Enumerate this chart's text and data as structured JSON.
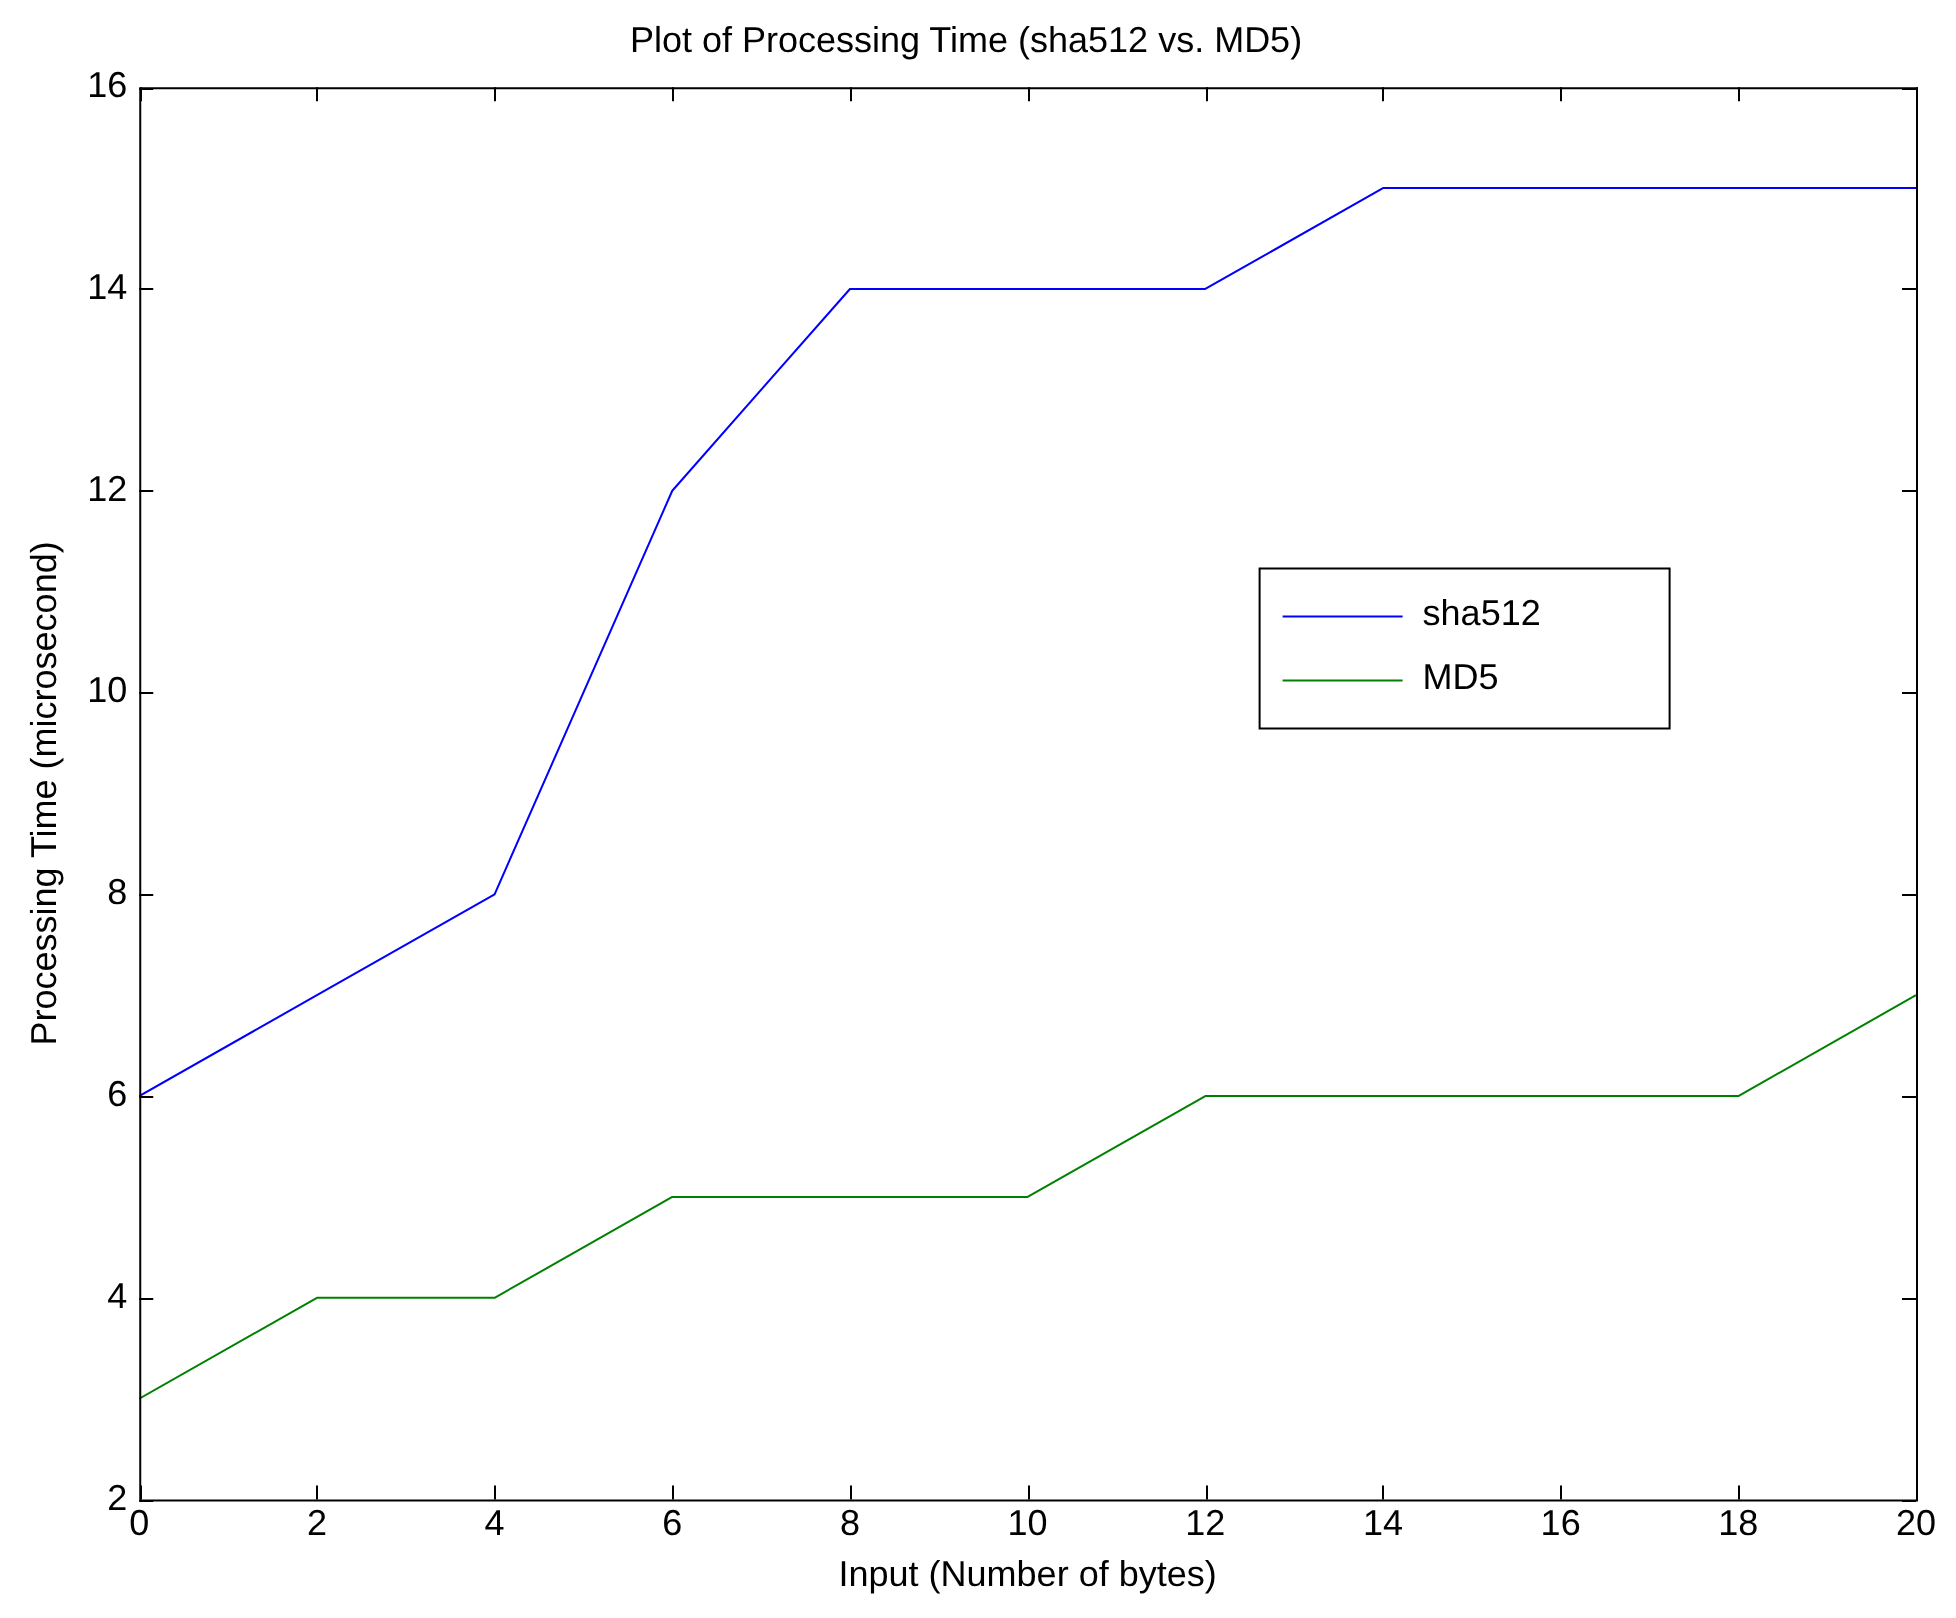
{
  "chart_data": {
    "type": "line",
    "title": "Plot of Processing Time (sha512 vs. MD5)",
    "xlabel": "Input (Number of bytes)",
    "ylabel": "Processing Time (microsecond)",
    "x": [
      0,
      2,
      4,
      6,
      8,
      10,
      12,
      14,
      16,
      18,
      20
    ],
    "series": [
      {
        "name": "sha512",
        "color": "#0000ff",
        "values": [
          6,
          7,
          8,
          12,
          14,
          14,
          14,
          15,
          15,
          15,
          15
        ]
      },
      {
        "name": "MD5",
        "color": "#008000",
        "values": [
          3,
          4,
          4,
          5,
          5,
          5,
          6,
          6,
          6,
          6,
          7
        ]
      }
    ],
    "xlim": [
      0,
      20
    ],
    "xticks": [
      0,
      2,
      4,
      6,
      8,
      10,
      12,
      14,
      16,
      18,
      20
    ],
    "ylim": [
      2,
      16
    ],
    "yticks": [
      2,
      4,
      6,
      8,
      10,
      12,
      14,
      16
    ],
    "grid": false,
    "legend": "right",
    "marker": "none",
    "line_style": "solid"
  }
}
